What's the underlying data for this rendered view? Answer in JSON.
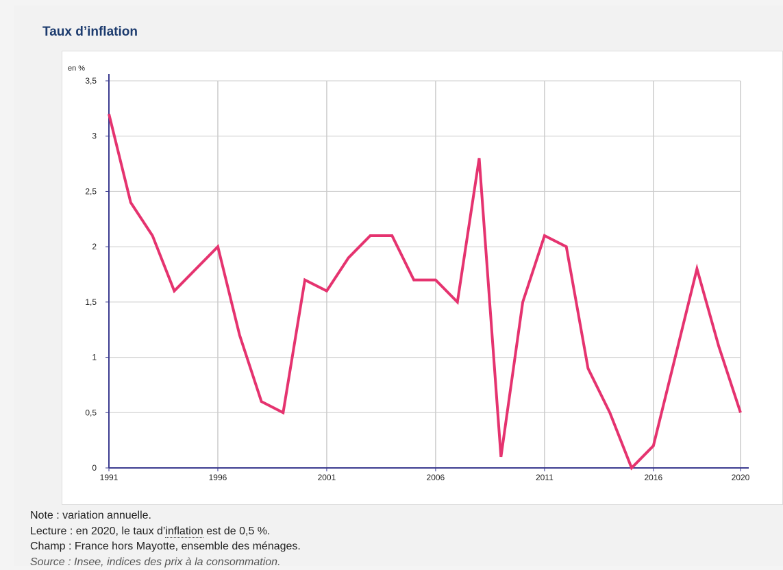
{
  "title": "Taux d’inflation",
  "notes": {
    "note": "Note : variation annuelle.",
    "lecture_prefix": "Lecture : en 2020, le taux d’",
    "lecture_link": "inflation",
    "lecture_suffix": " est de 0,5 %.",
    "champ": "Champ : France hors Mayotte, ensemble des ménages.",
    "source": "Source : Insee, indices des prix à la consommation."
  },
  "colors": {
    "line": "#e5336f",
    "axis": "#3b3b8f",
    "grid": "#cccccc",
    "title": "#1c3b6e"
  },
  "chart_data": {
    "type": "line",
    "title": "Taux d’inflation",
    "ylabel": "en %",
    "xlabel": "",
    "ylim": [
      0,
      3.5
    ],
    "xlim": [
      1991,
      2020
    ],
    "x_ticks": [
      "1991",
      "1996",
      "2001",
      "2006",
      "2011",
      "2016",
      "2020"
    ],
    "y_ticks": [
      "0",
      "0,5",
      "1",
      "1,5",
      "2",
      "2,5",
      "3",
      "3,5"
    ],
    "grid": true,
    "legend": "none",
    "x": [
      1991,
      1992,
      1993,
      1994,
      1995,
      1996,
      1997,
      1998,
      1999,
      2000,
      2001,
      2002,
      2003,
      2004,
      2005,
      2006,
      2007,
      2008,
      2009,
      2010,
      2011,
      2012,
      2013,
      2014,
      2015,
      2016,
      2017,
      2018,
      2019,
      2020
    ],
    "series": [
      {
        "values": [
          3.2,
          2.4,
          2.1,
          1.6,
          1.8,
          2.0,
          1.2,
          0.6,
          0.5,
          1.7,
          1.6,
          1.9,
          2.1,
          2.1,
          1.7,
          1.7,
          1.5,
          2.8,
          0.1,
          1.5,
          2.1,
          2.0,
          0.9,
          0.5,
          0.0,
          0.2,
          1.0,
          1.8,
          1.1,
          0.5
        ]
      }
    ]
  }
}
